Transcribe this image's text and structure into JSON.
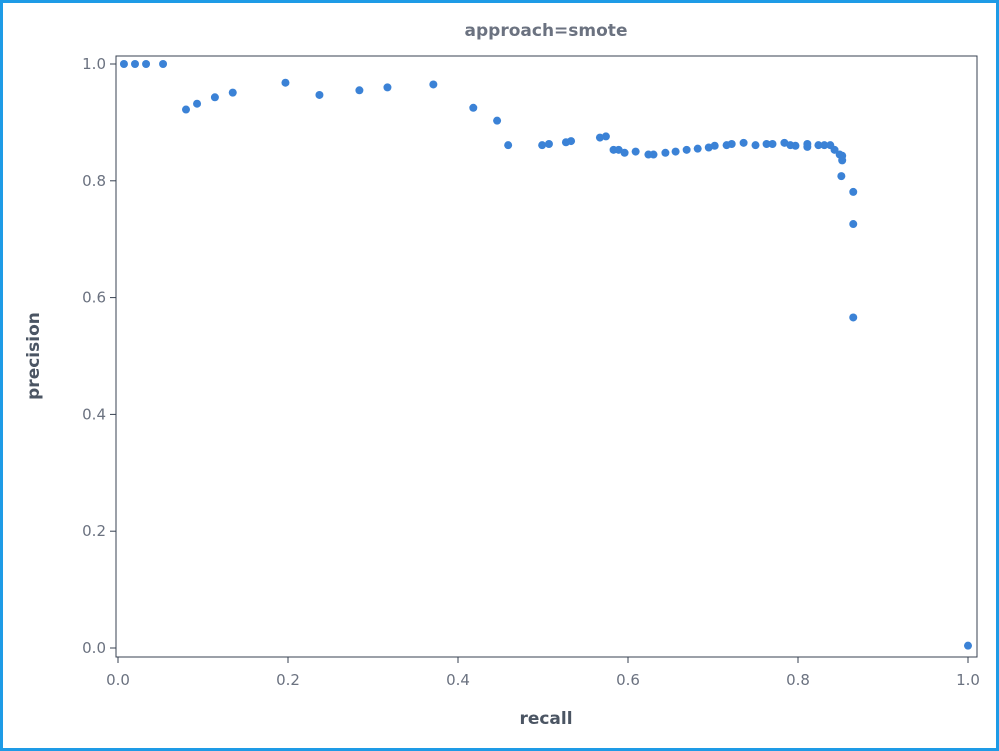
{
  "chart_data": {
    "type": "scatter",
    "title": "approach=smote",
    "xlabel": "recall",
    "ylabel": "precision",
    "xlim": [
      0,
      1
    ],
    "ylim": [
      0,
      1
    ],
    "xticks": [
      "0.0",
      "0.2",
      "0.4",
      "0.6",
      "0.8",
      "1.0"
    ],
    "yticks": [
      "0.0",
      "0.2",
      "0.4",
      "0.6",
      "0.8",
      "1.0"
    ],
    "grid": false,
    "color": "#3b82d6",
    "points": [
      [
        0.007,
        1.0
      ],
      [
        0.02,
        1.0
      ],
      [
        0.033,
        1.0
      ],
      [
        0.053,
        1.0
      ],
      [
        0.08,
        0.922
      ],
      [
        0.093,
        0.932
      ],
      [
        0.114,
        0.943
      ],
      [
        0.135,
        0.951
      ],
      [
        0.197,
        0.968
      ],
      [
        0.237,
        0.947
      ],
      [
        0.284,
        0.955
      ],
      [
        0.317,
        0.96
      ],
      [
        0.371,
        0.965
      ],
      [
        0.418,
        0.925
      ],
      [
        0.446,
        0.903
      ],
      [
        0.459,
        0.861
      ],
      [
        0.499,
        0.861
      ],
      [
        0.507,
        0.863
      ],
      [
        0.527,
        0.866
      ],
      [
        0.533,
        0.868
      ],
      [
        0.567,
        0.874
      ],
      [
        0.574,
        0.876
      ],
      [
        0.583,
        0.853
      ],
      [
        0.589,
        0.853
      ],
      [
        0.596,
        0.848
      ],
      [
        0.609,
        0.85
      ],
      [
        0.624,
        0.845
      ],
      [
        0.63,
        0.845
      ],
      [
        0.644,
        0.848
      ],
      [
        0.656,
        0.85
      ],
      [
        0.669,
        0.853
      ],
      [
        0.682,
        0.855
      ],
      [
        0.695,
        0.857
      ],
      [
        0.702,
        0.86
      ],
      [
        0.716,
        0.861
      ],
      [
        0.722,
        0.863
      ],
      [
        0.736,
        0.865
      ],
      [
        0.75,
        0.861
      ],
      [
        0.763,
        0.863
      ],
      [
        0.77,
        0.863
      ],
      [
        0.784,
        0.865
      ],
      [
        0.791,
        0.861
      ],
      [
        0.797,
        0.86
      ],
      [
        0.811,
        0.863
      ],
      [
        0.811,
        0.858
      ],
      [
        0.824,
        0.861
      ],
      [
        0.831,
        0.861
      ],
      [
        0.838,
        0.861
      ],
      [
        0.843,
        0.853
      ],
      [
        0.849,
        0.845
      ],
      [
        0.852,
        0.843
      ],
      [
        0.852,
        0.835
      ],
      [
        0.851,
        0.808
      ],
      [
        0.865,
        0.781
      ],
      [
        0.865,
        0.726
      ],
      [
        0.865,
        0.566
      ],
      [
        1.0,
        0.004
      ]
    ]
  }
}
